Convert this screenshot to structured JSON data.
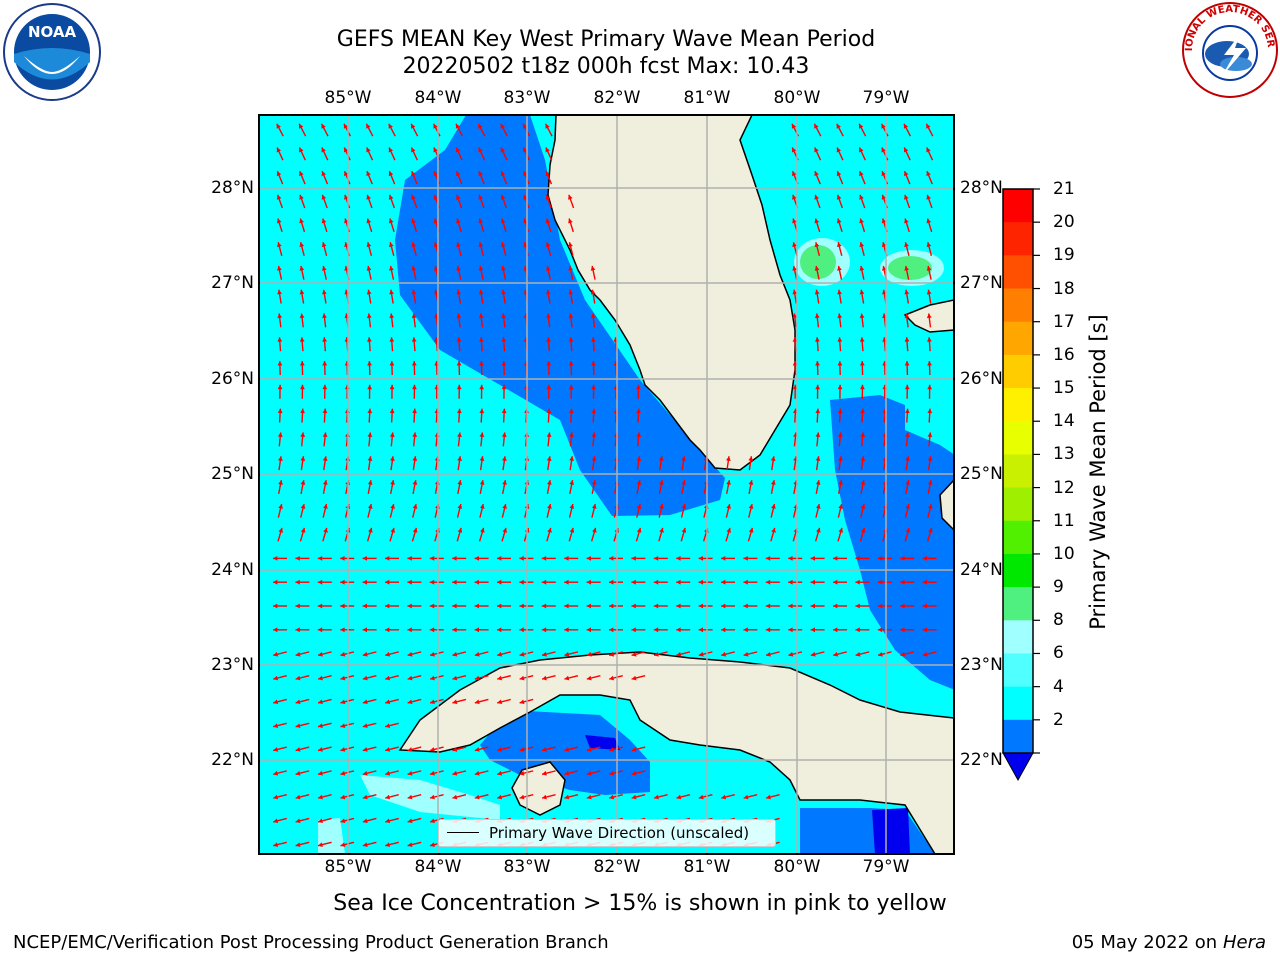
{
  "title": {
    "line1": "GEFS MEAN Key West Primary Wave Mean Period",
    "line2": "20220502 t18z 000h fcst   Max: 10.43"
  },
  "axes": {
    "lon_labels": [
      "85°W",
      "84°W",
      "83°W",
      "82°W",
      "81°W",
      "80°W",
      "79°W"
    ],
    "lat_labels": [
      "28°N",
      "27°N",
      "26°N",
      "25°N",
      "24°N",
      "23°N",
      "22°N"
    ]
  },
  "colorbar": {
    "label": "Primary Wave Mean Period [s]",
    "ticks": [
      "21",
      "20",
      "19",
      "18",
      "17",
      "16",
      "15",
      "14",
      "13",
      "12",
      "11",
      "10",
      "9",
      "8",
      "6",
      "4",
      "2"
    ],
    "colors": [
      "#ff0000",
      "#ff2400",
      "#ff4f00",
      "#ff7f00",
      "#ffa700",
      "#ffcc00",
      "#fff000",
      "#e8ff00",
      "#c8f000",
      "#9ef000",
      "#50f000",
      "#00e800",
      "#50f080",
      "#a0ffff",
      "#50ffff",
      "#00ffff",
      "#0078ff"
    ],
    "under_color": "#0000ee"
  },
  "legend": {
    "label": "Primary Wave Direction (unscaled)"
  },
  "note": "Sea Ice Concentration > 15% is shown in pink to yellow",
  "footer": {
    "left": "NCEP/EMC/Verification Post Processing Product Generation Branch",
    "right_date": "05 May 2022 on",
    "right_host": "Hera"
  },
  "logos": {
    "noaa_text": "NOAA",
    "nws_text": "NATIONAL WEATHER SERVICE"
  },
  "colors": {
    "land": "#f0eedc",
    "sea_light": "#00ffff",
    "sea_mid": "#0078ff",
    "sea_deep": "#0000ee",
    "arrow": "#ff0000",
    "grid": "#b0b0b0"
  }
}
